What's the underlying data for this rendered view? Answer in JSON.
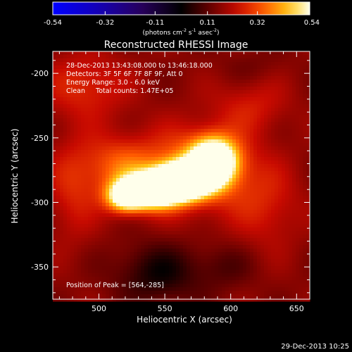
{
  "chart_data": {
    "type": "heatmap",
    "title": "Reconstructed RHESSI Image",
    "xlabel": "Heliocentric X (arcsec)",
    "ylabel": "Heliocentric Y (arcsec)",
    "xlim": [
      465,
      660
    ],
    "ylim": [
      -375,
      -183
    ],
    "x_ticks": [
      500,
      550,
      600,
      650
    ],
    "y_ticks": [
      -200,
      -250,
      -300,
      -350
    ],
    "colorbar": {
      "min": -0.54,
      "max": 0.54,
      "ticks": [
        "-0.54",
        "-0.32",
        "-0.11",
        "0.11",
        "0.32",
        "0.54"
      ],
      "units_main": "(photons cm",
      "units_sup1": "-2",
      "units_mid": " s",
      "units_sup2": "-1",
      "units_end": " asec",
      "units_sup3": "-2",
      "units_close": ")"
    },
    "annotations": [
      "28-Dec-2013 13:43:08.000 to 13:46:18.000",
      "Detectors: 3F 5F 6F 7F 8F 9F, Att 0",
      "Energy Range: 3.0 - 6.0 keV",
      "Clean     Total counts: 1.47E+05"
    ],
    "peak_label": "Position of Peak = [564,-285]",
    "peak": [
      564,
      -285
    ],
    "sources": [
      {
        "x": 564,
        "y": -283,
        "amp": 0.72,
        "sx": 14,
        "sy": 9
      },
      {
        "x": 540,
        "y": -291,
        "amp": 0.6,
        "sx": 15,
        "sy": 9
      },
      {
        "x": 587,
        "y": -268,
        "amp": 0.55,
        "sx": 12,
        "sy": 12
      },
      {
        "x": 520,
        "y": -296,
        "amp": 0.38,
        "sx": 10,
        "sy": 8
      },
      {
        "x": 575,
        "y": -275,
        "amp": 0.22,
        "sx": 30,
        "sy": 22
      },
      {
        "x": 515,
        "y": -272,
        "amp": 0.16,
        "sx": 20,
        "sy": 16
      },
      {
        "x": 490,
        "y": -210,
        "amp": 0.12,
        "sx": 22,
        "sy": 18
      },
      {
        "x": 480,
        "y": -290,
        "amp": 0.1,
        "sx": 14,
        "sy": 28
      },
      {
        "x": 615,
        "y": -225,
        "amp": 0.09,
        "sx": 20,
        "sy": 15
      },
      {
        "x": 628,
        "y": -305,
        "amp": 0.09,
        "sx": 18,
        "sy": 22
      },
      {
        "x": 545,
        "y": -355,
        "amp": -0.14,
        "sx": 22,
        "sy": 16
      },
      {
        "x": 595,
        "y": -350,
        "amp": -0.06,
        "sx": 16,
        "sy": 12
      },
      {
        "x": 615,
        "y": -195,
        "amp": -0.03,
        "sx": 16,
        "sy": 10
      }
    ],
    "background": 0.16
  },
  "footer": {
    "timestamp": "29-Dec-2013 10:25"
  }
}
